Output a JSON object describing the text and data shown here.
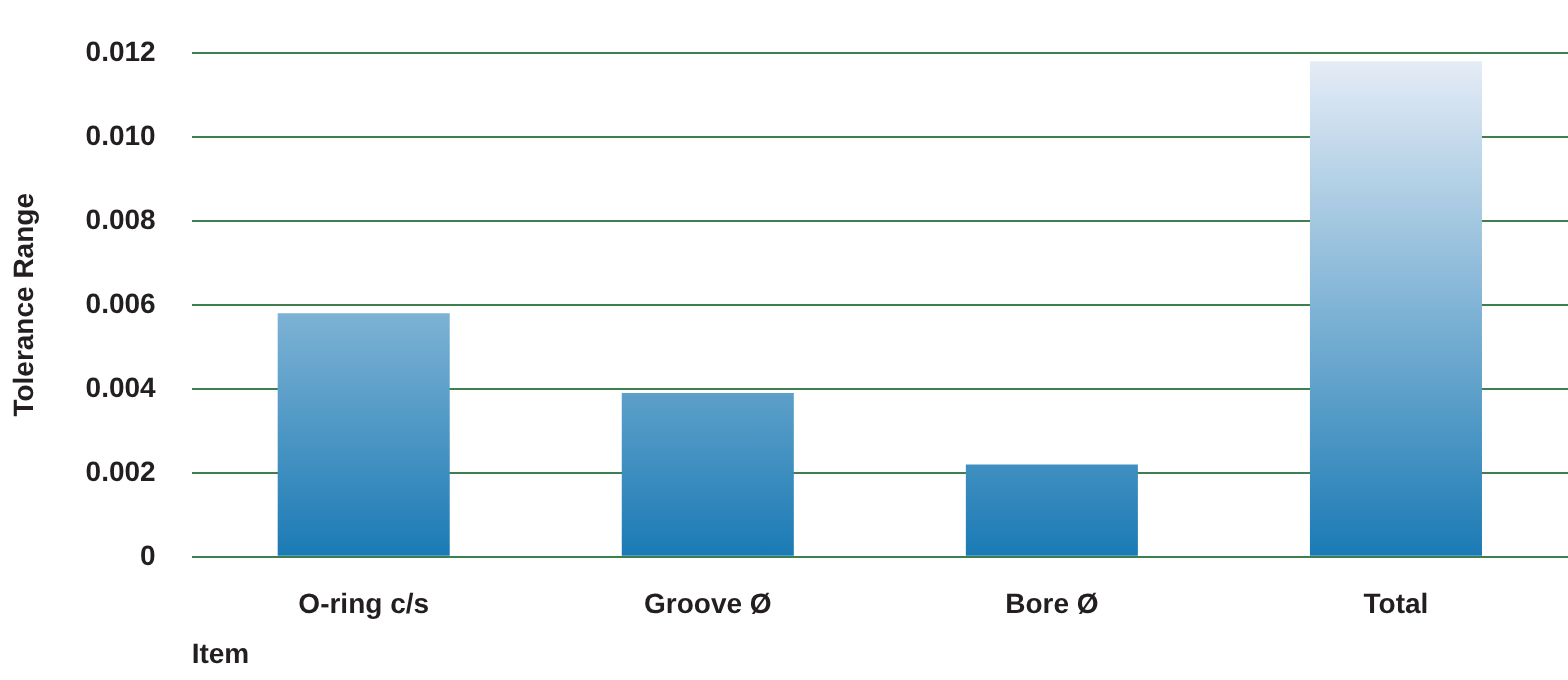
{
  "chart_data": {
    "type": "bar",
    "xlabel": "Item",
    "ylabel": "Tolerance Range",
    "categories": [
      "O-ring c/s",
      "Groove Ø",
      "Bore Ø",
      "Total"
    ],
    "values": [
      0.0058,
      0.0039,
      0.0022,
      0.0118
    ],
    "color": "#1a7ab4",
    "ylim": [
      0,
      0.012
    ],
    "yticks": [
      {
        "value": 0,
        "label": "0"
      },
      {
        "value": 0.002,
        "label": "0.002"
      },
      {
        "value": 0.004,
        "label": "0.004"
      },
      {
        "value": 0.006,
        "label": "0.006"
      },
      {
        "value": 0.008,
        "label": "0.008"
      },
      {
        "value": 0.01,
        "label": "0.010"
      },
      {
        "value": 0.012,
        "label": "0.012"
      }
    ],
    "grid": "y",
    "legend": false
  }
}
